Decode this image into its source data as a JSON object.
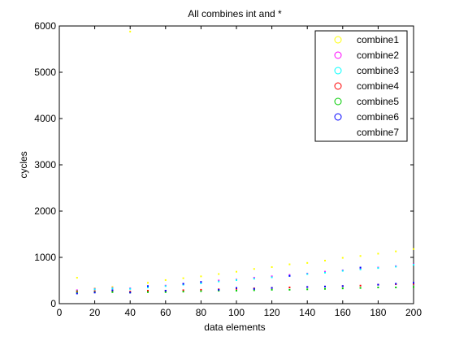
{
  "chart_data": {
    "type": "scatter",
    "title": "All combines int and *",
    "xlabel": "data elements",
    "ylabel": "cycles",
    "xlim": [
      0,
      200
    ],
    "ylim": [
      0,
      6000
    ],
    "xticks": [
      0,
      20,
      40,
      60,
      80,
      100,
      120,
      140,
      160,
      180,
      200
    ],
    "yticks": [
      0,
      1000,
      2000,
      3000,
      4000,
      5000,
      6000
    ],
    "grid": false,
    "legend_position": "top-right",
    "x": [
      10,
      20,
      30,
      40,
      50,
      60,
      70,
      80,
      90,
      100,
      110,
      120,
      130,
      140,
      150,
      160,
      170,
      180,
      190,
      200
    ],
    "series": [
      {
        "name": "combine1",
        "color": "#ffff00",
        "values": [
          560,
          330,
          360,
          5880,
          450,
          510,
          550,
          590,
          640,
          690,
          750,
          790,
          850,
          880,
          930,
          990,
          1030,
          1080,
          1130,
          1180
        ]
      },
      {
        "name": "combine2",
        "color": "#ff00ff",
        "values": [
          290,
          320,
          340,
          330,
          360,
          390,
          420,
          460,
          500,
          520,
          560,
          590,
          620,
          650,
          690,
          720,
          760,
          780,
          810,
          850
        ]
      },
      {
        "name": "combine3",
        "color": "#00ffff",
        "values": [
          280,
          310,
          330,
          320,
          350,
          380,
          410,
          440,
          480,
          510,
          540,
          570,
          600,
          640,
          670,
          710,
          740,
          770,
          800,
          840
        ]
      },
      {
        "name": "combine4",
        "color": "#ff0000",
        "values": [
          270,
          270,
          280,
          260,
          280,
          280,
          290,
          300,
          310,
          320,
          330,
          340,
          350,
          360,
          370,
          380,
          390,
          410,
          420,
          430
        ]
      },
      {
        "name": "combine5",
        "color": "#00cc00",
        "values": [
          240,
          250,
          250,
          240,
          250,
          250,
          260,
          270,
          280,
          280,
          290,
          300,
          300,
          310,
          320,
          330,
          340,
          350,
          350,
          360
        ]
      },
      {
        "name": "combine6",
        "color": "#0000ff",
        "values": [
          220,
          240,
          290,
          240,
          380,
          280,
          430,
          470,
          300,
          340,
          320,
          340,
          600,
          360,
          370,
          380,
          780,
          410,
          430,
          450
        ]
      },
      {
        "name": "combine7",
        "color": "#ffffff",
        "values": []
      }
    ]
  }
}
